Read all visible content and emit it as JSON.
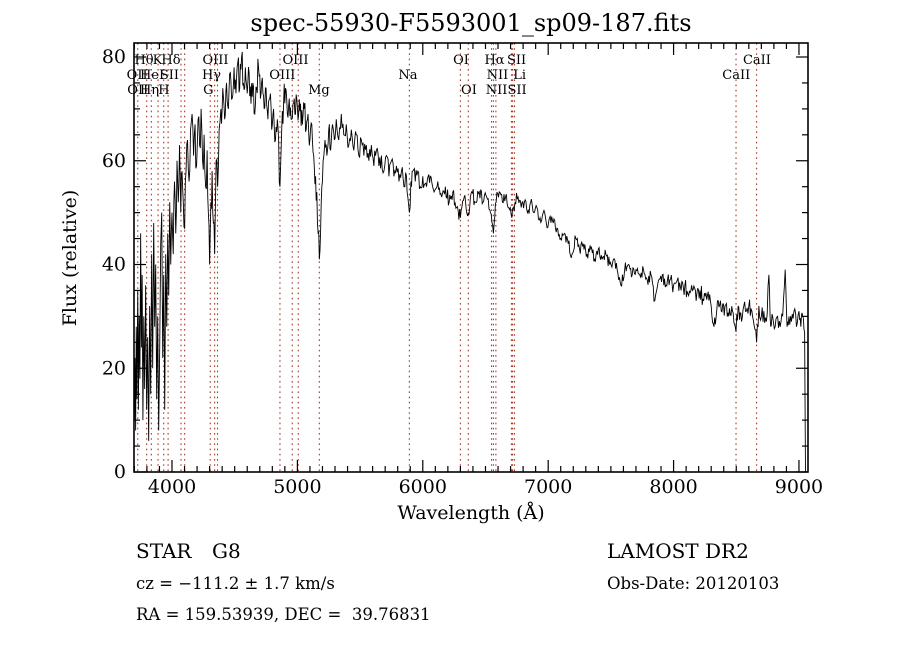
{
  "figure": {
    "background": "#ffffff",
    "frame_color": "#000000"
  },
  "annotations": {
    "object_type": "STAR",
    "subclass": "G8",
    "cz": "cz = −111.2 ± 1.7 km/s",
    "radec": "RA = 159.53939, DEC =  39.76831",
    "survey": "LAMOST DR2",
    "obs_date": "Obs-Date: 20120103"
  },
  "chart_data": {
    "type": "line",
    "title": "spec-55930-F5593001_sp09-187.fits",
    "xlabel": "Wavelength (Å)",
    "ylabel": "Flux (relative)",
    "xlim": [
      3697,
      9072
    ],
    "ylim": [
      0,
      82.7
    ],
    "x_ticks": [
      4000,
      5000,
      6000,
      7000,
      8000,
      9000
    ],
    "y_ticks": [
      0,
      20,
      40,
      60,
      80
    ],
    "x_minor_step": 100,
    "y_minor_step": 5,
    "grid": false,
    "legend": "none",
    "trace_color": "#000000",
    "marker_color": "#a63a28",
    "spectral_lines": {
      "markers": [
        3727,
        3798,
        3835,
        3889,
        3934,
        3969,
        4072,
        4101,
        4305,
        4340,
        4363,
        4861,
        4959,
        5007,
        5175,
        5893,
        6300,
        6363,
        6548,
        6563,
        6583,
        6707,
        6716,
        6731,
        8498,
        8662
      ],
      "labels": [
        {
          "text": "Hθ",
          "wl": 3777,
          "row": 1
        },
        {
          "text": "K",
          "wl": 3884,
          "row": 1
        },
        {
          "text": "Hδ",
          "wl": 3992,
          "row": 1
        },
        {
          "text": "OIII",
          "wl": 4347,
          "row": 1
        },
        {
          "text": "OIII",
          "wl": 4985,
          "row": 1
        },
        {
          "text": "OI",
          "wl": 6305,
          "row": 1
        },
        {
          "text": "Hα",
          "wl": 6572,
          "row": 1
        },
        {
          "text": "SII",
          "wl": 6748,
          "row": 1
        },
        {
          "text": "CaII",
          "wl": 8665,
          "row": 1
        },
        {
          "text": "OII",
          "wl": 3722,
          "row": 2
        },
        {
          "text": "HeI",
          "wl": 3841,
          "row": 2
        },
        {
          "text": "SII",
          "wl": 3980,
          "row": 2
        },
        {
          "text": "Hγ",
          "wl": 4315,
          "row": 2
        },
        {
          "text": "OIII",
          "wl": 4880,
          "row": 2
        },
        {
          "text": "Na",
          "wl": 5882,
          "row": 2
        },
        {
          "text": "NII",
          "wl": 6595,
          "row": 2
        },
        {
          "text": "Li",
          "wl": 6772,
          "row": 2
        },
        {
          "text": "CaII",
          "wl": 8500,
          "row": 2
        },
        {
          "text": "OII",
          "wl": 3727,
          "row": 3
        },
        {
          "text": "Hη",
          "wl": 3821,
          "row": 3
        },
        {
          "text": "H",
          "wl": 3936,
          "row": 3
        },
        {
          "text": "G",
          "wl": 4290,
          "row": 3
        },
        {
          "text": "Mg",
          "wl": 5172,
          "row": 3
        },
        {
          "text": "OI",
          "wl": 6368,
          "row": 3
        },
        {
          "text": "NII",
          "wl": 6588,
          "row": 3
        },
        {
          "text": "SII",
          "wl": 6752,
          "row": 3
        }
      ]
    },
    "noise_profile": [
      [
        3697,
        7
      ],
      [
        4000,
        4.5
      ],
      [
        4400,
        3
      ],
      [
        5300,
        2
      ],
      [
        6050,
        1.4
      ],
      [
        7000,
        1.2
      ],
      [
        7950,
        1.7
      ]
    ],
    "series": [
      [
        3700,
        10
      ],
      [
        3705,
        22
      ],
      [
        3710,
        8
      ],
      [
        3715,
        28
      ],
      [
        3720,
        14
      ],
      [
        3727,
        35
      ],
      [
        3732,
        12
      ],
      [
        3738,
        30
      ],
      [
        3744,
        18
      ],
      [
        3750,
        46
      ],
      [
        3756,
        24
      ],
      [
        3762,
        38
      ],
      [
        3768,
        10
      ],
      [
        3775,
        30
      ],
      [
        3782,
        16
      ],
      [
        3790,
        36
      ],
      [
        3798,
        12
      ],
      [
        3806,
        26
      ],
      [
        3814,
        6
      ],
      [
        3822,
        32
      ],
      [
        3830,
        15
      ],
      [
        3838,
        42
      ],
      [
        3846,
        20
      ],
      [
        3854,
        48
      ],
      [
        3862,
        28
      ],
      [
        3870,
        40
      ],
      [
        3878,
        14
      ],
      [
        3886,
        30
      ],
      [
        3894,
        8
      ],
      [
        3902,
        24
      ],
      [
        3910,
        44
      ],
      [
        3918,
        50
      ],
      [
        3926,
        22
      ],
      [
        3934,
        38
      ],
      [
        3942,
        12
      ],
      [
        3950,
        42
      ],
      [
        3958,
        28
      ],
      [
        3966,
        46
      ],
      [
        3974,
        34
      ],
      [
        3982,
        52
      ],
      [
        3990,
        40
      ],
      [
        4000,
        50
      ],
      [
        4010,
        42
      ],
      [
        4020,
        56
      ],
      [
        4030,
        46
      ],
      [
        4040,
        60
      ],
      [
        4050,
        52
      ],
      [
        4060,
        63
      ],
      [
        4070,
        50
      ],
      [
        4080,
        58
      ],
      [
        4090,
        52
      ],
      [
        4101,
        47
      ],
      [
        4112,
        58
      ],
      [
        4124,
        64
      ],
      [
        4136,
        56
      ],
      [
        4148,
        66
      ],
      [
        4160,
        69
      ],
      [
        4172,
        61
      ],
      [
        4184,
        67
      ],
      [
        4196,
        59
      ],
      [
        4208,
        68
      ],
      [
        4220,
        63
      ],
      [
        4232,
        70
      ],
      [
        4244,
        60
      ],
      [
        4256,
        65
      ],
      [
        4268,
        55
      ],
      [
        4280,
        62
      ],
      [
        4290,
        50
      ],
      [
        4300,
        40
      ],
      [
        4310,
        52
      ],
      [
        4320,
        58
      ],
      [
        4330,
        48
      ],
      [
        4340,
        42
      ],
      [
        4352,
        60
      ],
      [
        4364,
        55
      ],
      [
        4376,
        66
      ],
      [
        4390,
        70
      ],
      [
        4405,
        74
      ],
      [
        4420,
        68
      ],
      [
        4435,
        75
      ],
      [
        4450,
        70
      ],
      [
        4465,
        77
      ],
      [
        4480,
        72
      ],
      [
        4495,
        78
      ],
      [
        4510,
        73
      ],
      [
        4525,
        79
      ],
      [
        4540,
        74
      ],
      [
        4555,
        80
      ],
      [
        4570,
        75
      ],
      [
        4585,
        78
      ],
      [
        4600,
        73
      ],
      [
        4615,
        77
      ],
      [
        4630,
        71
      ],
      [
        4645,
        75
      ],
      [
        4660,
        69
      ],
      [
        4675,
        74
      ],
      [
        4690,
        78
      ],
      [
        4705,
        72
      ],
      [
        4720,
        76
      ],
      [
        4735,
        70
      ],
      [
        4750,
        74
      ],
      [
        4765,
        68
      ],
      [
        4780,
        72
      ],
      [
        4795,
        66
      ],
      [
        4810,
        70
      ],
      [
        4825,
        64
      ],
      [
        4840,
        68
      ],
      [
        4861,
        55
      ],
      [
        4875,
        66
      ],
      [
        4890,
        71
      ],
      [
        4905,
        74
      ],
      [
        4920,
        69
      ],
      [
        4935,
        72
      ],
      [
        4950,
        68
      ],
      [
        4965,
        71
      ],
      [
        4980,
        69
      ],
      [
        4995,
        72
      ],
      [
        5010,
        69
      ],
      [
        5025,
        71
      ],
      [
        5040,
        67
      ],
      [
        5055,
        70
      ],
      [
        5070,
        66
      ],
      [
        5085,
        69
      ],
      [
        5100,
        64
      ],
      [
        5115,
        67
      ],
      [
        5130,
        61
      ],
      [
        5145,
        57
      ],
      [
        5160,
        48
      ],
      [
        5175,
        41
      ],
      [
        5190,
        52
      ],
      [
        5205,
        60
      ],
      [
        5220,
        64
      ],
      [
        5235,
        61
      ],
      [
        5250,
        66
      ],
      [
        5265,
        62
      ],
      [
        5280,
        67
      ],
      [
        5295,
        64
      ],
      [
        5310,
        68
      ],
      [
        5330,
        64
      ],
      [
        5350,
        69
      ],
      [
        5370,
        65
      ],
      [
        5390,
        67
      ],
      [
        5410,
        63
      ],
      [
        5430,
        66
      ],
      [
        5450,
        62
      ],
      [
        5470,
        65
      ],
      [
        5490,
        61
      ],
      [
        5510,
        64
      ],
      [
        5530,
        61
      ],
      [
        5550,
        63
      ],
      [
        5570,
        60
      ],
      [
        5590,
        63
      ],
      [
        5610,
        59
      ],
      [
        5630,
        62
      ],
      [
        5650,
        59
      ],
      [
        5670,
        61
      ],
      [
        5690,
        58
      ],
      [
        5710,
        61
      ],
      [
        5730,
        57
      ],
      [
        5750,
        60
      ],
      [
        5770,
        57
      ],
      [
        5790,
        59
      ],
      [
        5810,
        56
      ],
      [
        5830,
        58
      ],
      [
        5850,
        55
      ],
      [
        5870,
        57
      ],
      [
        5885,
        52
      ],
      [
        5893,
        50
      ],
      [
        5905,
        56
      ],
      [
        5920,
        58
      ],
      [
        5940,
        56
      ],
      [
        5960,
        58
      ],
      [
        5980,
        55
      ],
      [
        6000,
        57
      ],
      [
        6030,
        55
      ],
      [
        6060,
        57
      ],
      [
        6090,
        54
      ],
      [
        6120,
        56
      ],
      [
        6150,
        53
      ],
      [
        6180,
        55
      ],
      [
        6210,
        52
      ],
      [
        6240,
        54
      ],
      [
        6270,
        51
      ],
      [
        6300,
        49
      ],
      [
        6330,
        53
      ],
      [
        6363,
        50
      ],
      [
        6390,
        54
      ],
      [
        6420,
        52
      ],
      [
        6450,
        54
      ],
      [
        6480,
        52
      ],
      [
        6510,
        53
      ],
      [
        6540,
        50
      ],
      [
        6563,
        46
      ],
      [
        6585,
        52
      ],
      [
        6610,
        54
      ],
      [
        6635,
        52
      ],
      [
        6660,
        53
      ],
      [
        6685,
        51
      ],
      [
        6710,
        49
      ],
      [
        6735,
        52
      ],
      [
        6760,
        53
      ],
      [
        6785,
        51
      ],
      [
        6810,
        52
      ],
      [
        6835,
        50
      ],
      [
        6860,
        52
      ],
      [
        6885,
        50
      ],
      [
        6910,
        51
      ],
      [
        6935,
        49
      ],
      [
        6960,
        50
      ],
      [
        6985,
        48
      ],
      [
        7010,
        49
      ],
      [
        7040,
        48
      ],
      [
        7070,
        47
      ],
      [
        7100,
        45
      ],
      [
        7130,
        46
      ],
      [
        7160,
        44
      ],
      [
        7190,
        42
      ],
      [
        7220,
        45
      ],
      [
        7250,
        43
      ],
      [
        7280,
        44
      ],
      [
        7310,
        42
      ],
      [
        7340,
        43
      ],
      [
        7370,
        41
      ],
      [
        7400,
        43
      ],
      [
        7430,
        41
      ],
      [
        7460,
        42
      ],
      [
        7490,
        40
      ],
      [
        7520,
        41
      ],
      [
        7550,
        39
      ],
      [
        7580,
        36
      ],
      [
        7610,
        39
      ],
      [
        7640,
        40
      ],
      [
        7670,
        38
      ],
      [
        7700,
        39
      ],
      [
        7730,
        38
      ],
      [
        7760,
        39
      ],
      [
        7790,
        37
      ],
      [
        7820,
        38
      ],
      [
        7850,
        33
      ],
      [
        7880,
        37
      ],
      [
        7910,
        38
      ],
      [
        7940,
        36
      ],
      [
        7970,
        37
      ],
      [
        8000,
        36
      ],
      [
        8030,
        37
      ],
      [
        8060,
        35
      ],
      [
        8090,
        36
      ],
      [
        8120,
        34
      ],
      [
        8150,
        35
      ],
      [
        8180,
        33
      ],
      [
        8210,
        35
      ],
      [
        8240,
        33
      ],
      [
        8270,
        34
      ],
      [
        8300,
        32
      ],
      [
        8322,
        28
      ],
      [
        8350,
        33
      ],
      [
        8380,
        31
      ],
      [
        8410,
        32
      ],
      [
        8440,
        30
      ],
      [
        8470,
        31
      ],
      [
        8498,
        27
      ],
      [
        8515,
        32
      ],
      [
        8542,
        29
      ],
      [
        8560,
        32
      ],
      [
        8580,
        31
      ],
      [
        8600,
        32
      ],
      [
        8630,
        30
      ],
      [
        8662,
        25
      ],
      [
        8680,
        32
      ],
      [
        8700,
        30
      ],
      [
        8720,
        31
      ],
      [
        8740,
        29
      ],
      [
        8760,
        38
      ],
      [
        8775,
        28
      ],
      [
        8790,
        30
      ],
      [
        8810,
        28
      ],
      [
        8830,
        30
      ],
      [
        8850,
        28
      ],
      [
        8870,
        30
      ],
      [
        8890,
        39
      ],
      [
        8905,
        28
      ],
      [
        8920,
        30
      ],
      [
        8940,
        29
      ],
      [
        8960,
        31
      ],
      [
        8980,
        28
      ],
      [
        9000,
        31
      ],
      [
        9015,
        28
      ],
      [
        9030,
        30
      ],
      [
        9045,
        27
      ],
      [
        9052,
        0
      ]
    ]
  }
}
